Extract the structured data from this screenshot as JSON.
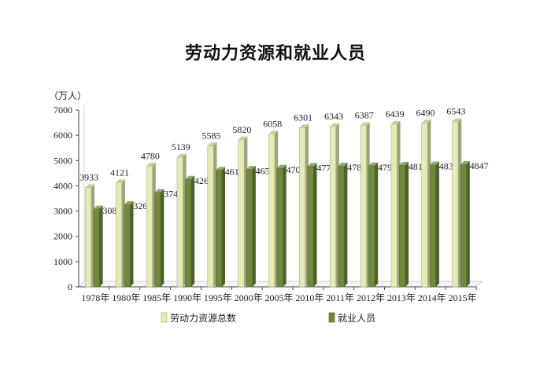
{
  "chart_data": {
    "type": "bar",
    "title": "劳动力资源和就业人员",
    "ylabel": "（万人）",
    "xlabel": "",
    "ylim": [
      0,
      7000
    ],
    "yticks": [
      0,
      1000,
      2000,
      3000,
      4000,
      5000,
      6000,
      7000
    ],
    "categories": [
      "1978年",
      "1980年",
      "1985年",
      "1990年",
      "1995年",
      "2000年",
      "2005年",
      "2010年",
      "2011年",
      "2012年",
      "2013年",
      "2014年",
      "2015年"
    ],
    "series": [
      {
        "name": "劳动力资源总数",
        "color": "#e4ebb4",
        "values": [
          3933,
          4121,
          4780,
          5139,
          5585,
          5820,
          6058,
          6301,
          6343,
          6387,
          6439,
          6490,
          6543
        ]
      },
      {
        "name": "就业人员",
        "color": "#6f8a3e",
        "values": [
          3087,
          3260,
          3743,
          4265,
          4619,
          4658,
          4702,
          4773,
          4785,
          4798,
          4817,
          4833,
          4847
        ]
      }
    ],
    "legend_position": "bottom",
    "grid": false
  }
}
